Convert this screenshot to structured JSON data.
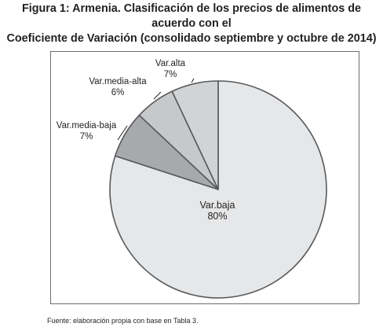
{
  "figure": {
    "title_line1": "Figura 1: Armenia. Clasificación de los precios de alimentos de acuerdo con el",
    "title_line2": "Coeficiente de Variación (consolidado septiembre y octubre de 2014)",
    "source": "Fuente: elaboración propia con base en Tabla 3."
  },
  "chart_data": {
    "type": "pie",
    "title": "",
    "slices": [
      {
        "label": "Var.baja",
        "value": 80,
        "value_label": "80%",
        "color": "#e6e7e8"
      },
      {
        "label": "Var.media-baja",
        "value": 7,
        "value_label": "7%",
        "color": "#a7a9ac"
      },
      {
        "label": "Var.media-alta",
        "value": 6,
        "value_label": "6%",
        "color": "#c7c8ca"
      },
      {
        "label": "Var.alta",
        "value": 7,
        "value_label": "7%",
        "color": "#d1d3d4"
      }
    ],
    "stroke_color": "#58595b",
    "legend": "none"
  }
}
